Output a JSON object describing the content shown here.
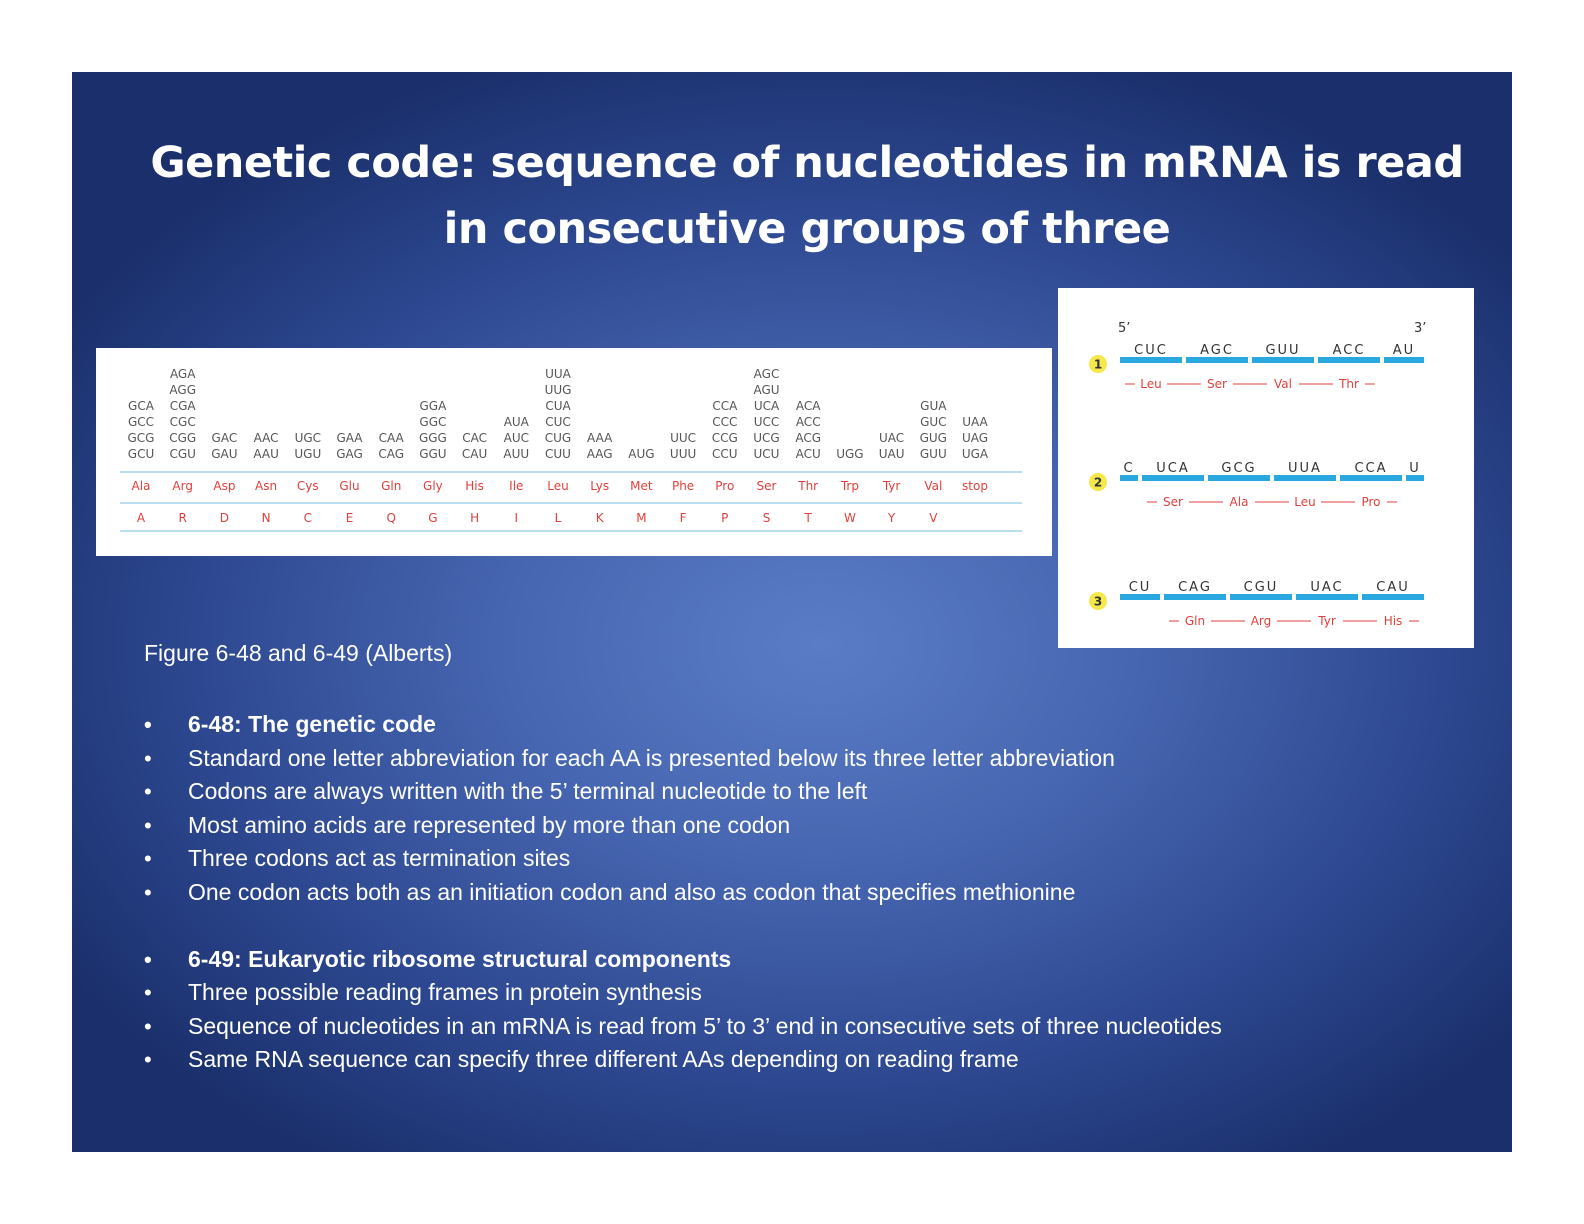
{
  "slide": {
    "title_line1": "Genetic code: sequence of nucleotides in mRNA is read",
    "title_line2": "in consecutive groups of three",
    "caption": "Figure 6-48 and 6-49 (Alberts)"
  },
  "genetic_code": {
    "columns": [
      {
        "codons": [
          "GCA",
          "GCC",
          "GCG",
          "GCU"
        ],
        "aa3": "Ala",
        "aa1": "A"
      },
      {
        "codons": [
          "AGA",
          "AGG",
          "CGA",
          "CGC",
          "CGG",
          "CGU"
        ],
        "aa3": "Arg",
        "aa1": "R"
      },
      {
        "codons": [
          "GAC",
          "GAU"
        ],
        "aa3": "Asp",
        "aa1": "D"
      },
      {
        "codons": [
          "AAC",
          "AAU"
        ],
        "aa3": "Asn",
        "aa1": "N"
      },
      {
        "codons": [
          "UGC",
          "UGU"
        ],
        "aa3": "Cys",
        "aa1": "C"
      },
      {
        "codons": [
          "GAA",
          "GAG"
        ],
        "aa3": "Glu",
        "aa1": "E"
      },
      {
        "codons": [
          "CAA",
          "CAG"
        ],
        "aa3": "Gln",
        "aa1": "Q"
      },
      {
        "codons": [
          "GGA",
          "GGC",
          "GGG",
          "GGU"
        ],
        "aa3": "Gly",
        "aa1": "G"
      },
      {
        "codons": [
          "CAC",
          "CAU"
        ],
        "aa3": "His",
        "aa1": "H"
      },
      {
        "codons": [
          "AUA",
          "AUC",
          "AUU"
        ],
        "aa3": "Ile",
        "aa1": "I"
      },
      {
        "codons": [
          "UUA",
          "UUG",
          "CUA",
          "CUC",
          "CUG",
          "CUU"
        ],
        "aa3": "Leu",
        "aa1": "L"
      },
      {
        "codons": [
          "AAA",
          "AAG"
        ],
        "aa3": "Lys",
        "aa1": "K"
      },
      {
        "codons": [
          "AUG"
        ],
        "aa3": "Met",
        "aa1": "M"
      },
      {
        "codons": [
          "UUC",
          "UUU"
        ],
        "aa3": "Phe",
        "aa1": "F"
      },
      {
        "codons": [
          "CCA",
          "CCC",
          "CCG",
          "CCU"
        ],
        "aa3": "Pro",
        "aa1": "P"
      },
      {
        "codons": [
          "AGC",
          "AGU",
          "UCA",
          "UCC",
          "UCG",
          "UCU"
        ],
        "aa3": "Ser",
        "aa1": "S"
      },
      {
        "codons": [
          "ACA",
          "ACC",
          "ACG",
          "ACU"
        ],
        "aa3": "Thr",
        "aa1": "T"
      },
      {
        "codons": [
          "UGG"
        ],
        "aa3": "Trp",
        "aa1": "W"
      },
      {
        "codons": [
          "UAC",
          "UAU"
        ],
        "aa3": "Tyr",
        "aa1": "Y"
      },
      {
        "codons": [
          "GUA",
          "GUC",
          "GUG",
          "GUU"
        ],
        "aa3": "Val",
        "aa1": "V"
      },
      {
        "codons": [
          "UAA",
          "UAG",
          "UGA"
        ],
        "aa3": "stop",
        "aa1": ""
      }
    ]
  },
  "reading_frames": {
    "five_prime": "5’",
    "three_prime": "3’",
    "frames": [
      {
        "number": "1",
        "codons": [
          "CUC",
          "AGC",
          "GUU",
          "ACC",
          "AU"
        ],
        "amino_acids": [
          "Leu",
          "Ser",
          "Val",
          "Thr"
        ]
      },
      {
        "number": "2",
        "codons": [
          "C",
          "UCA",
          "GCG",
          "UUA",
          "CCA",
          "U"
        ],
        "amino_acids": [
          "Ser",
          "Ala",
          "Leu",
          "Pro"
        ]
      },
      {
        "number": "3",
        "codons": [
          "CU",
          "CAG",
          "CGU",
          "UAC",
          "CAU"
        ],
        "amino_acids": [
          "Gln",
          "Arg",
          "Tyr",
          "His"
        ]
      }
    ]
  },
  "bullets": {
    "section1": [
      "6-48: The genetic code",
      "Standard one letter abbreviation for each AA is presented below its three letter abbreviation",
      "Codons are always written with the 5’ terminal nucleotide to the left",
      "Most amino acids are represented by more than one codon",
      "Three codons act as termination sites",
      "One codon acts both as an initiation codon and also as codon that specifies methionine"
    ],
    "section2": [
      "6-49: Eukaryotic ribosome structural components",
      "Three possible reading frames in protein synthesis",
      "Sequence of nucleotides in an mRNA is read from 5’ to 3’ end in consecutive sets of three nucleotides",
      "Same RNA sequence can specify three different AAs depending on reading frame"
    ]
  },
  "colors": {
    "codon_text": "#555555",
    "aa_text": "#e0403c",
    "rule_line": "#8ec9e8",
    "rna_bar": "#29a8e0",
    "frame_badge": "#f5e84a"
  }
}
